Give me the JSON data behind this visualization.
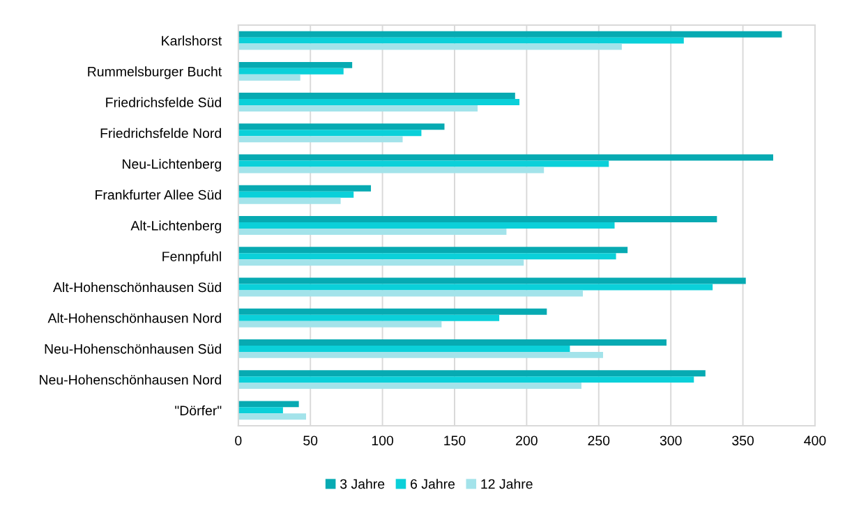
{
  "chart_data": {
    "type": "bar",
    "orientation": "horizontal",
    "categories": [
      "Karlshorst",
      "Rummelsburger Bucht",
      "Friedrichsfelde Süd",
      "Friedrichsfelde Nord",
      "Neu-Lichtenberg",
      "Frankfurter Allee Süd",
      "Alt-Lichtenberg",
      "Fennpfuhl",
      "Alt-Hohenschönhausen Süd",
      "Alt-Hohenschönhausen Nord",
      "Neu-Hohenschönhausen Süd",
      "Neu-Hohenschönhausen Nord",
      "\"Dörfer\""
    ],
    "series": [
      {
        "name": "3 Jahre",
        "color": "#07aab2",
        "values": [
          377,
          79,
          192,
          143,
          371,
          92,
          332,
          270,
          352,
          214,
          297,
          324,
          42
        ]
      },
      {
        "name": "6 Jahre",
        "color": "#0bd0d9",
        "values": [
          309,
          73,
          195,
          127,
          257,
          80,
          261,
          262,
          329,
          181,
          230,
          316,
          31
        ]
      },
      {
        "name": "12 Jahre",
        "color": "#a3e3ea",
        "values": [
          266,
          43,
          166,
          114,
          212,
          71,
          186,
          198,
          239,
          141,
          253,
          238,
          47
        ]
      }
    ],
    "xlim": [
      0,
      400
    ],
    "xticks": [
      0,
      50,
      100,
      150,
      200,
      250,
      300,
      350,
      400
    ],
    "grid": "x",
    "legend": "bottom"
  }
}
